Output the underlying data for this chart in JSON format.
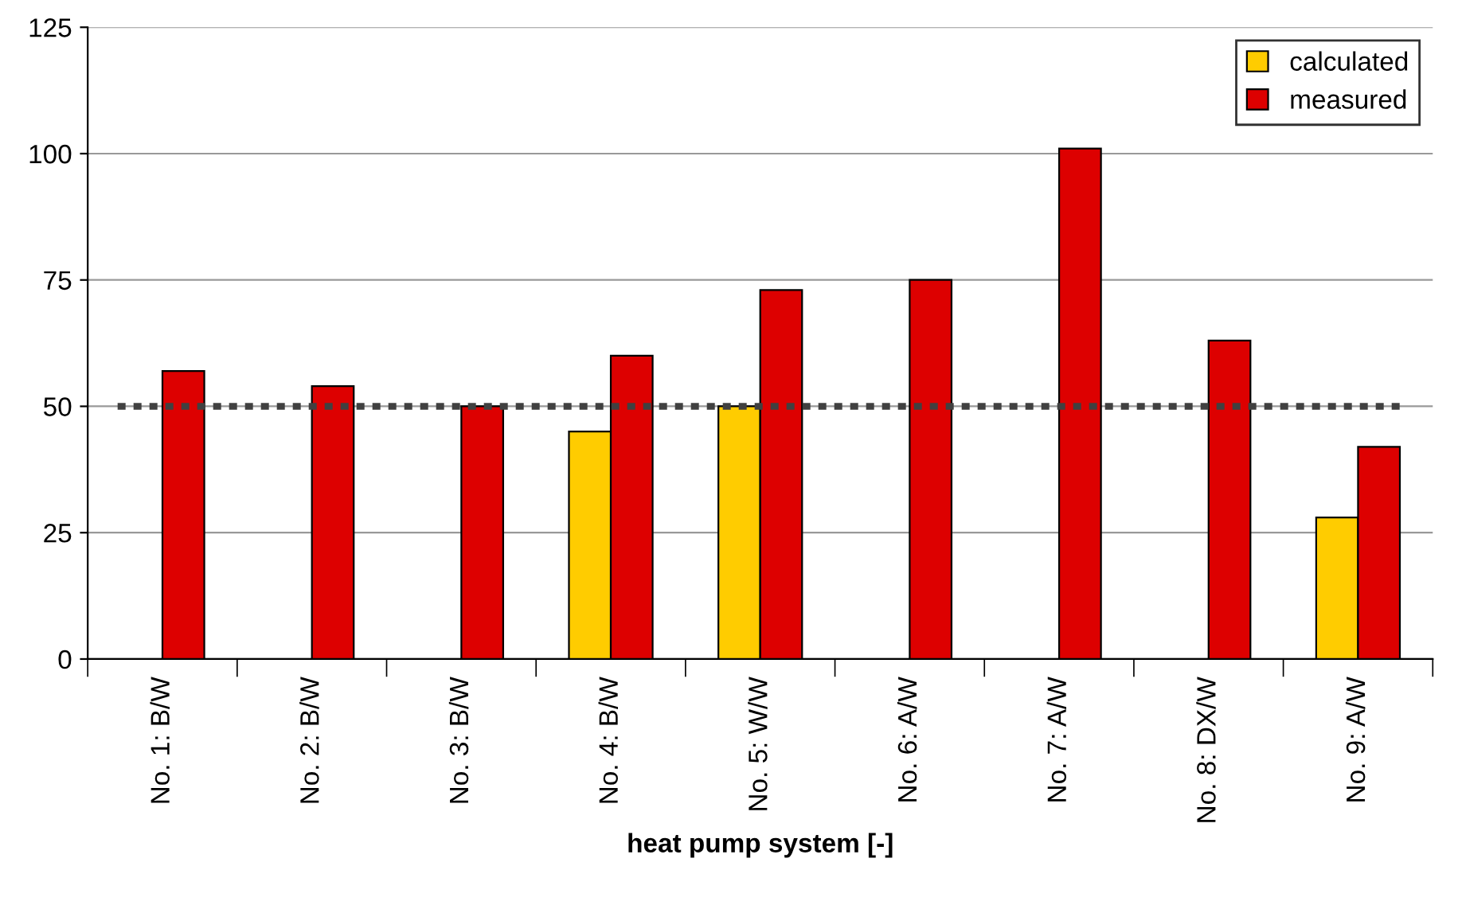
{
  "chart_data": {
    "type": "bar",
    "xlabel": "heat pump system [-]",
    "categories": [
      "No. 1: B/W",
      "No. 2: B/W",
      "No. 3: B/W",
      "No. 4: B/W",
      "No. 5: W/W",
      "No. 6: A/W",
      "No. 7: A/W",
      "No. 8: DX/W",
      "No. 9: A/W"
    ],
    "series": [
      {
        "name": "calculated",
        "color": "#ffcc00",
        "values": [
          null,
          null,
          null,
          45,
          50,
          null,
          null,
          null,
          28
        ]
      },
      {
        "name": "measured",
        "color": "#dd0000",
        "values": [
          57,
          54,
          50,
          60,
          73,
          75,
          101,
          63,
          42
        ]
      }
    ],
    "ylim": [
      0,
      125
    ],
    "yticks": [
      0,
      25,
      50,
      75,
      100,
      125
    ],
    "grid": "y",
    "legend": "top right",
    "ref_lines": [
      {
        "axis": "y",
        "value": 50,
        "label": null,
        "color": "#404040",
        "line_style": "dotted"
      }
    ]
  }
}
